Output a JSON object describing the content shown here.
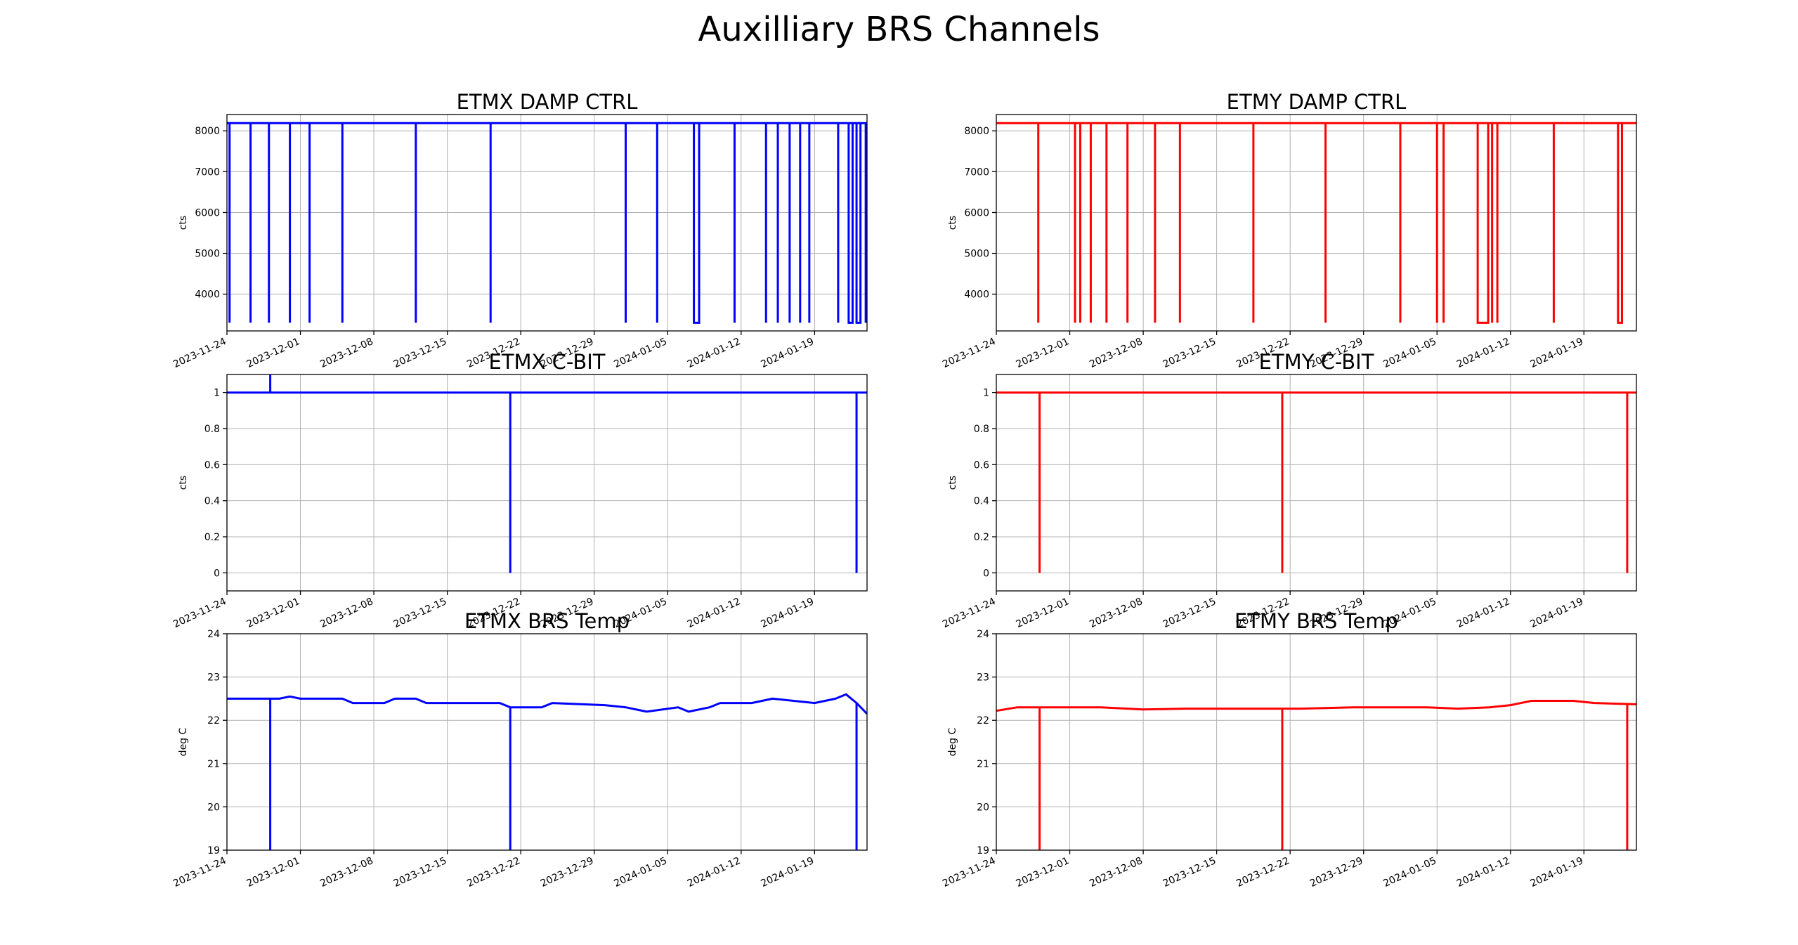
{
  "figure": {
    "title": "Auxilliary BRS Channels"
  },
  "chart_data": [
    {
      "type": "line",
      "title": "ETMX DAMP CTRL",
      "xlabel": "",
      "ylabel": "cts",
      "color": "#0000ff",
      "x_range": [
        "2023-11-24",
        "2024-01-24"
      ],
      "ylim": [
        3100,
        8400
      ],
      "yticks": [
        4000,
        5000,
        6000,
        7000,
        8000
      ],
      "xticks": [
        "2023-11-24",
        "2023-12-01",
        "2023-12-08",
        "2023-12-15",
        "2023-12-22",
        "2023-12-29",
        "2024-01-05",
        "2024-01-12",
        "2024-01-19"
      ],
      "grid": true,
      "baseline": 8190,
      "low": 3300,
      "dips": [
        [
          "2023-11-24T06:00",
          "2023-11-24T12:00"
        ],
        [
          "2023-11-26T06:00",
          "2023-11-26T09:00"
        ],
        [
          "2023-11-28",
          "2023-11-28T06:00"
        ],
        [
          "2023-11-30",
          "2023-11-30T03:00"
        ],
        [
          "2023-12-01T21:00",
          "2023-12-02T03:00"
        ],
        [
          "2023-12-05T00:00",
          "2023-12-05T06:00"
        ],
        [
          "2023-12-12T00:00",
          "2023-12-12T03:00"
        ],
        [
          "2023-12-19T03:00",
          "2023-12-19T06:00"
        ],
        [
          "2024-01-01T00:00",
          "2024-01-01T06:00"
        ],
        [
          "2024-01-04T00:00",
          "2024-01-04T03:00"
        ],
        [
          "2024-01-07T12:00",
          "2024-01-08T00:00"
        ],
        [
          "2024-01-11T09:00",
          "2024-01-11T12:00"
        ],
        [
          "2024-01-14T09:00",
          "2024-01-14T12:00"
        ],
        [
          "2024-01-15T12:00",
          "2024-01-15T15:00"
        ],
        [
          "2024-01-16T15:00",
          "2024-01-16T21:00"
        ],
        [
          "2024-01-17T15:00",
          "2024-01-17T21:00"
        ],
        [
          "2024-01-18T12:00",
          "2024-01-18T15:00"
        ],
        [
          "2024-01-21T06:00",
          "2024-01-21T12:00"
        ],
        [
          "2024-01-22T06:00",
          "2024-01-22T15:00"
        ],
        [
          "2024-01-23T00:00",
          "2024-01-23T09:00"
        ],
        [
          "2024-01-23T21:00",
          "2024-01-24T00:00"
        ]
      ]
    },
    {
      "type": "line",
      "title": "ETMY DAMP CTRL",
      "xlabel": "",
      "ylabel": "cts",
      "color": "#ff0000",
      "x_range": [
        "2023-11-24",
        "2024-01-24"
      ],
      "ylim": [
        3100,
        8400
      ],
      "yticks": [
        4000,
        5000,
        6000,
        7000,
        8000
      ],
      "xticks": [
        "2023-11-24",
        "2023-12-01",
        "2023-12-08",
        "2023-12-15",
        "2023-12-22",
        "2023-12-29",
        "2024-01-05",
        "2024-01-12",
        "2024-01-19"
      ],
      "grid": true,
      "baseline": 8190,
      "low": 3300,
      "dips": [
        [
          "2023-11-28",
          "2023-11-28T03:00"
        ],
        [
          "2023-12-01T12:00",
          "2023-12-01T15:00"
        ],
        [
          "2023-12-02",
          "2023-12-02T03:00"
        ],
        [
          "2023-12-03",
          "2023-12-03T03:00"
        ],
        [
          "2023-12-04T12:00",
          "2023-12-04T18:00"
        ],
        [
          "2023-12-06T12:00",
          "2023-12-06T15:00"
        ],
        [
          "2023-12-09T03:00",
          "2023-12-09T06:00"
        ],
        [
          "2023-12-11T12:00",
          "2023-12-11T15:00"
        ],
        [
          "2023-12-18T12:00",
          "2023-12-18T15:00"
        ],
        [
          "2023-12-25T09:00",
          "2023-12-25T12:00"
        ],
        [
          "2024-01-01T12:00",
          "2024-01-01T15:00"
        ],
        [
          "2024-01-05T00:00",
          "2024-01-05T03:00"
        ],
        [
          "2024-01-05T15:00",
          "2024-01-05T18:00"
        ],
        [
          "2024-01-08T21:00",
          "2024-01-09T21:00"
        ],
        [
          "2024-01-10T06:00",
          "2024-01-10T09:00"
        ],
        [
          "2024-01-10T18:00",
          "2024-01-10T21:00"
        ],
        [
          "2024-01-16T03:00",
          "2024-01-16T06:00"
        ],
        [
          "2024-01-22T06:00",
          "2024-01-22T15:00"
        ]
      ]
    },
    {
      "type": "line",
      "title": "ETMX C-BIT",
      "xlabel": "",
      "ylabel": "cts",
      "color": "#0000ff",
      "x_range": [
        "2023-11-24",
        "2024-01-24"
      ],
      "ylim": [
        -0.1,
        1.1
      ],
      "yticks": [
        0.0,
        0.2,
        0.4,
        0.6,
        0.8,
        1.0
      ],
      "xticks": [
        "2023-11-24",
        "2023-12-01",
        "2023-12-08",
        "2023-12-15",
        "2023-12-22",
        "2023-12-29",
        "2024-01-05",
        "2024-01-12",
        "2024-01-19"
      ],
      "grid": true,
      "baseline": 1.0,
      "low": 0.0,
      "spikes_up": [
        "2023-11-28T03:00"
      ],
      "dips": [
        [
          "2023-12-21T00:00",
          "2023-12-21T03:00"
        ],
        [
          "2024-01-23T00:00",
          "2024-01-23T03:00"
        ]
      ]
    },
    {
      "type": "line",
      "title": "ETMY C-BIT",
      "xlabel": "",
      "ylabel": "cts",
      "color": "#ff0000",
      "x_range": [
        "2023-11-24",
        "2024-01-24"
      ],
      "ylim": [
        -0.1,
        1.1
      ],
      "yticks": [
        0.0,
        0.2,
        0.4,
        0.6,
        0.8,
        1.0
      ],
      "xticks": [
        "2023-11-24",
        "2023-12-01",
        "2023-12-08",
        "2023-12-15",
        "2023-12-22",
        "2023-12-29",
        "2024-01-05",
        "2024-01-12",
        "2024-01-19"
      ],
      "grid": true,
      "baseline": 1.0,
      "low": 0.0,
      "dips": [
        [
          "2023-11-28T03:00",
          "2023-11-28T06:00"
        ],
        [
          "2023-12-21T06:00",
          "2023-12-21T09:00"
        ],
        [
          "2024-01-23T03:00",
          "2024-01-23T06:00"
        ]
      ]
    },
    {
      "type": "line",
      "title": "ETMX BRS Temp",
      "xlabel": "",
      "ylabel": "deg C",
      "color": "#0000ff",
      "x_range": [
        "2023-11-24",
        "2024-01-24"
      ],
      "ylim": [
        19,
        24
      ],
      "yticks": [
        19,
        20,
        21,
        22,
        23,
        24
      ],
      "xticks": [
        "2023-11-24",
        "2023-12-01",
        "2023-12-08",
        "2023-12-15",
        "2023-12-22",
        "2023-12-29",
        "2024-01-05",
        "2024-01-12",
        "2024-01-19"
      ],
      "grid": true,
      "low": 19,
      "points": [
        [
          "2023-11-24",
          22.5
        ],
        [
          "2023-11-29",
          22.5
        ],
        [
          "2023-11-30",
          22.55
        ],
        [
          "2023-12-01",
          22.5
        ],
        [
          "2023-12-05",
          22.5
        ],
        [
          "2023-12-06",
          22.4
        ],
        [
          "2023-12-09",
          22.4
        ],
        [
          "2023-12-10",
          22.5
        ],
        [
          "2023-12-12",
          22.5
        ],
        [
          "2023-12-13",
          22.4
        ],
        [
          "2023-12-16",
          22.4
        ],
        [
          "2023-12-18",
          22.4
        ],
        [
          "2023-12-20",
          22.4
        ],
        [
          "2023-12-21",
          22.3
        ],
        [
          "2023-12-24",
          22.3
        ],
        [
          "2023-12-25",
          22.4
        ],
        [
          "2023-12-30",
          22.35
        ],
        [
          "2024-01-01",
          22.3
        ],
        [
          "2024-01-03",
          22.2
        ],
        [
          "2024-01-06",
          22.3
        ],
        [
          "2024-01-07",
          22.2
        ],
        [
          "2024-01-09",
          22.3
        ],
        [
          "2024-01-10",
          22.4
        ],
        [
          "2024-01-13",
          22.4
        ],
        [
          "2024-01-15",
          22.5
        ],
        [
          "2024-01-19",
          22.4
        ],
        [
          "2024-01-21",
          22.5
        ],
        [
          "2024-01-22",
          22.6
        ],
        [
          "2024-01-23",
          22.4
        ],
        [
          "2024-01-24",
          22.15
        ]
      ],
      "dips": [
        [
          "2023-11-28T03:00",
          "2023-11-28T03:00"
        ],
        [
          "2023-12-21T00:00",
          "2023-12-21T00:00"
        ],
        [
          "2024-01-23T00:00",
          "2024-01-23T00:00"
        ]
      ]
    },
    {
      "type": "line",
      "title": "ETMY BRS Temp",
      "xlabel": "",
      "ylabel": "deg C",
      "color": "#ff0000",
      "x_range": [
        "2023-11-24",
        "2024-01-24"
      ],
      "ylim": [
        19,
        24
      ],
      "yticks": [
        19,
        20,
        21,
        22,
        23,
        24
      ],
      "xticks": [
        "2023-11-24",
        "2023-12-01",
        "2023-12-08",
        "2023-12-15",
        "2023-12-22",
        "2023-12-29",
        "2024-01-05",
        "2024-01-12",
        "2024-01-19"
      ],
      "grid": true,
      "low": 19,
      "points": [
        [
          "2023-11-24",
          22.22
        ],
        [
          "2023-11-26",
          22.3
        ],
        [
          "2023-12-04",
          22.3
        ],
        [
          "2023-12-08",
          22.25
        ],
        [
          "2023-12-12",
          22.27
        ],
        [
          "2023-12-20",
          22.27
        ],
        [
          "2023-12-23",
          22.27
        ],
        [
          "2023-12-28",
          22.3
        ],
        [
          "2024-01-04",
          22.3
        ],
        [
          "2024-01-07",
          22.27
        ],
        [
          "2024-01-10",
          22.3
        ],
        [
          "2024-01-12",
          22.35
        ],
        [
          "2024-01-14",
          22.45
        ],
        [
          "2024-01-18",
          22.45
        ],
        [
          "2024-01-20",
          22.4
        ],
        [
          "2024-01-24",
          22.37
        ]
      ],
      "dips": [
        [
          "2023-11-28T03:00",
          "2023-11-28T03:00"
        ],
        [
          "2023-12-21T06:00",
          "2023-12-21T06:00"
        ],
        [
          "2024-01-23T03:00",
          "2024-01-23T03:00"
        ]
      ]
    }
  ]
}
